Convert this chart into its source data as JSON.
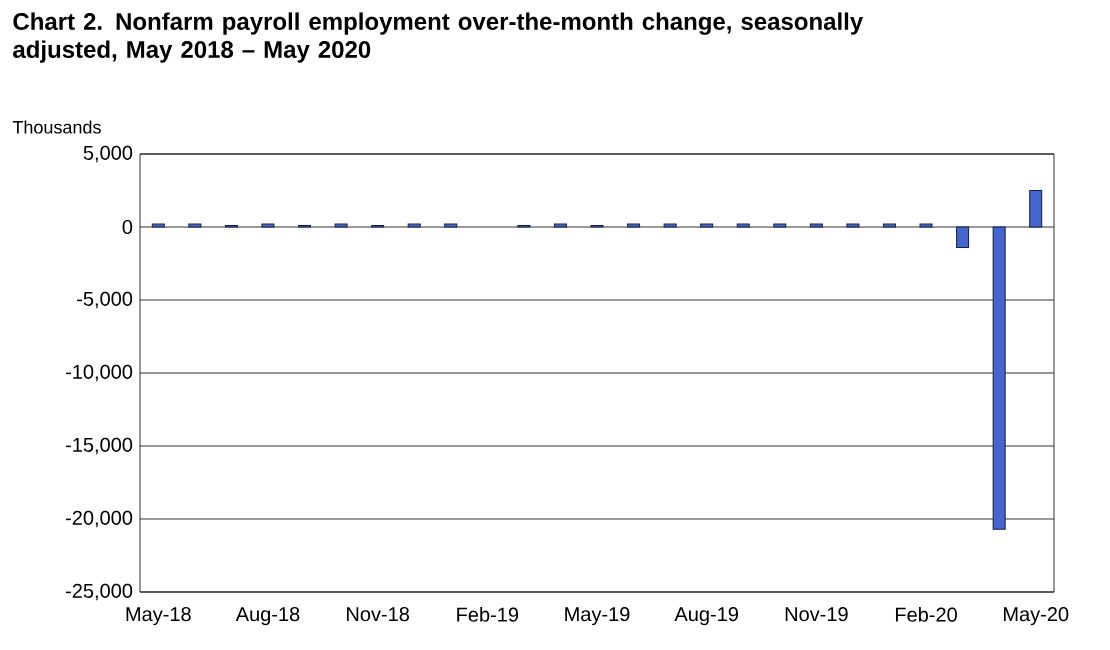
{
  "chart_data": {
    "type": "bar",
    "title": "Chart 2. Nonfarm payroll employment over-the-month change, seasonally adjusted, May 2018 – May 2020",
    "ylabel": "Thousands",
    "categories": [
      "May-18",
      null,
      null,
      "Aug-18",
      null,
      null,
      "Nov-18",
      null,
      null,
      "Feb-19",
      null,
      null,
      "May-19",
      null,
      null,
      "Aug-19",
      null,
      null,
      "Nov-19",
      null,
      null,
      "Feb-20",
      null,
      null,
      "May-20"
    ],
    "values": [
      200,
      200,
      100,
      200,
      100,
      200,
      100,
      200,
      200,
      null,
      100,
      200,
      100,
      200,
      200,
      200,
      200,
      200,
      200,
      200,
      200,
      200,
      -1400,
      -20700,
      2500
    ],
    "color": "#4466cc",
    "ylim": [
      -25000,
      5000
    ],
    "yticks": [
      {
        "value": -25000,
        "label": "-25,000"
      },
      {
        "value": -20000,
        "label": "-20,000"
      },
      {
        "value": -15000,
        "label": "-15,000"
      },
      {
        "value": -10000,
        "label": "-10,000"
      },
      {
        "value": -5000,
        "label": "-5,000"
      },
      {
        "value": 0,
        "label": "0"
      },
      {
        "value": 5000,
        "label": "5,000"
      }
    ],
    "grid": "y"
  }
}
